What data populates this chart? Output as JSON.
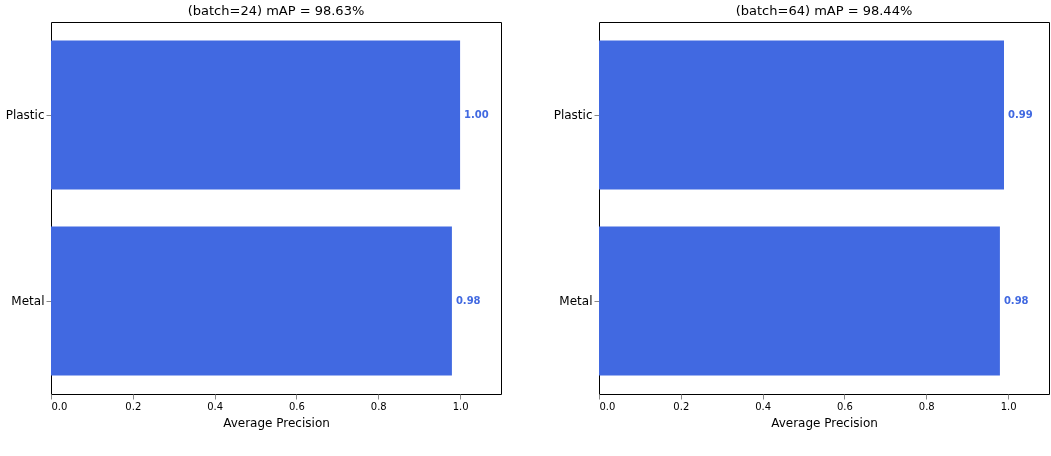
{
  "chart_data": [
    {
      "type": "bar",
      "orientation": "horizontal",
      "title": "(batch=24) mAP = 98.63%",
      "xlabel": "Average Precision",
      "categories": [
        "Plastic",
        "Metal"
      ],
      "values": [
        1.0,
        0.98
      ],
      "value_labels": [
        "1.00",
        "0.98"
      ],
      "color": "#4169e1",
      "xlim": [
        0,
        1.1
      ],
      "xticks": [
        {
          "value": 0,
          "label": "0.0"
        },
        {
          "value": 0.2,
          "label": "0.2"
        },
        {
          "value": 0.4,
          "label": "0.4"
        },
        {
          "value": 0.6,
          "label": "0.6"
        },
        {
          "value": 0.8,
          "label": "0.8"
        },
        {
          "value": 1,
          "label": "1.0"
        }
      ],
      "grid": false
    },
    {
      "type": "bar",
      "orientation": "horizontal",
      "title": "(batch=64) mAP = 98.44%",
      "xlabel": "Average Precision",
      "categories": [
        "Plastic",
        "Metal"
      ],
      "values": [
        0.99,
        0.98
      ],
      "value_labels": [
        "0.99",
        "0.98"
      ],
      "color": "#4169e1",
      "xlim": [
        0,
        1.1
      ],
      "xticks": [
        {
          "value": 0,
          "label": "0.0"
        },
        {
          "value": 0.2,
          "label": "0.2"
        },
        {
          "value": 0.4,
          "label": "0.4"
        },
        {
          "value": 0.6,
          "label": "0.6"
        },
        {
          "value": 0.8,
          "label": "0.8"
        },
        {
          "value": 1,
          "label": "1.0"
        }
      ],
      "grid": false
    }
  ]
}
